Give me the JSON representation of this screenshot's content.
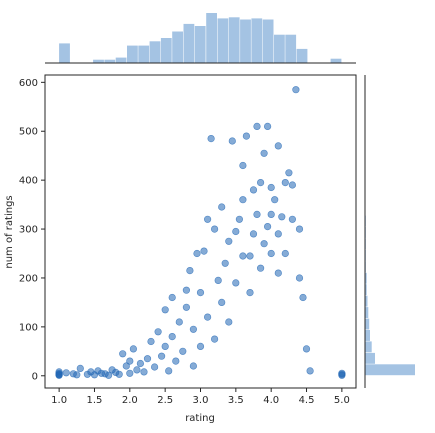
{
  "chart_data": {
    "type": "scatter",
    "title": "",
    "xlabel": "rating",
    "ylabel": "num of ratings",
    "xlim": [
      0.8,
      5.2
    ],
    "ylim": [
      -25,
      615
    ],
    "xticks": [
      1.0,
      1.5,
      2.0,
      2.5,
      3.0,
      3.5,
      4.0,
      4.5,
      5.0
    ],
    "xtick_labels": [
      "1.0",
      "1.5",
      "2.0",
      "2.5",
      "3.0",
      "3.5",
      "4.0",
      "4.5",
      "5.0"
    ],
    "yticks": [
      0,
      100,
      200,
      300,
      400,
      500,
      600
    ],
    "ytick_labels": [
      "0",
      "100",
      "200",
      "300",
      "400",
      "500",
      "600"
    ],
    "grid": false,
    "legend": "none",
    "colors": {
      "points": "#2166b5",
      "hist": "#a4c3e3",
      "axis": "#262626"
    },
    "points": [
      [
        1.0,
        1
      ],
      [
        1.0,
        2
      ],
      [
        1.0,
        3
      ],
      [
        1.0,
        5
      ],
      [
        1.0,
        8
      ],
      [
        1.1,
        6
      ],
      [
        1.2,
        4
      ],
      [
        1.25,
        2
      ],
      [
        1.3,
        15
      ],
      [
        1.4,
        3
      ],
      [
        1.45,
        8
      ],
      [
        1.5,
        2
      ],
      [
        1.55,
        10
      ],
      [
        1.6,
        5
      ],
      [
        1.65,
        4
      ],
      [
        1.7,
        1
      ],
      [
        1.75,
        12
      ],
      [
        1.8,
        7
      ],
      [
        1.85,
        3
      ],
      [
        1.9,
        45
      ],
      [
        1.95,
        20
      ],
      [
        2.0,
        5
      ],
      [
        2.0,
        30
      ],
      [
        2.05,
        55
      ],
      [
        2.1,
        12
      ],
      [
        2.15,
        25
      ],
      [
        2.2,
        8
      ],
      [
        2.25,
        35
      ],
      [
        2.3,
        70
      ],
      [
        2.35,
        18
      ],
      [
        2.4,
        90
      ],
      [
        2.45,
        40
      ],
      [
        2.5,
        135
      ],
      [
        2.5,
        60
      ],
      [
        2.55,
        10
      ],
      [
        2.6,
        160
      ],
      [
        2.6,
        80
      ],
      [
        2.65,
        30
      ],
      [
        2.7,
        110
      ],
      [
        2.75,
        50
      ],
      [
        2.8,
        175
      ],
      [
        2.8,
        140
      ],
      [
        2.85,
        215
      ],
      [
        2.9,
        95
      ],
      [
        2.9,
        20
      ],
      [
        2.95,
        250
      ],
      [
        3.0,
        60
      ],
      [
        3.0,
        170
      ],
      [
        3.05,
        255
      ],
      [
        3.1,
        320
      ],
      [
        3.1,
        120
      ],
      [
        3.15,
        485
      ],
      [
        3.2,
        300
      ],
      [
        3.2,
        75
      ],
      [
        3.25,
        195
      ],
      [
        3.3,
        345
      ],
      [
        3.3,
        150
      ],
      [
        3.35,
        230
      ],
      [
        3.4,
        275
      ],
      [
        3.4,
        110
      ],
      [
        3.45,
        480
      ],
      [
        3.5,
        295
      ],
      [
        3.5,
        190
      ],
      [
        3.55,
        320
      ],
      [
        3.6,
        430
      ],
      [
        3.6,
        360
      ],
      [
        3.6,
        245
      ],
      [
        3.65,
        490
      ],
      [
        3.7,
        245
      ],
      [
        3.7,
        170
      ],
      [
        3.75,
        380
      ],
      [
        3.75,
        290
      ],
      [
        3.8,
        510
      ],
      [
        3.8,
        330
      ],
      [
        3.85,
        395
      ],
      [
        3.85,
        220
      ],
      [
        3.9,
        455
      ],
      [
        3.9,
        270
      ],
      [
        3.95,
        510
      ],
      [
        3.95,
        305
      ],
      [
        4.0,
        385
      ],
      [
        4.0,
        330
      ],
      [
        4.0,
        250
      ],
      [
        4.05,
        360
      ],
      [
        4.1,
        470
      ],
      [
        4.1,
        290
      ],
      [
        4.1,
        210
      ],
      [
        4.15,
        325
      ],
      [
        4.2,
        395
      ],
      [
        4.2,
        250
      ],
      [
        4.25,
        415
      ],
      [
        4.3,
        390
      ],
      [
        4.3,
        320
      ],
      [
        4.35,
        585
      ],
      [
        4.4,
        300
      ],
      [
        4.4,
        200
      ],
      [
        4.45,
        160
      ],
      [
        4.5,
        55
      ],
      [
        4.55,
        10
      ],
      [
        5.0,
        1
      ],
      [
        5.0,
        3
      ],
      [
        5.0,
        5
      ]
    ],
    "x_hist": {
      "edges": [
        1.0,
        1.16,
        1.32,
        1.48,
        1.64,
        1.8,
        1.96,
        2.12,
        2.28,
        2.44,
        2.6,
        2.76,
        2.92,
        3.08,
        3.24,
        3.4,
        3.56,
        3.72,
        3.88,
        4.04,
        4.2,
        4.36,
        4.52,
        4.68,
        4.84,
        5.0
      ],
      "counts": [
        18,
        0,
        0,
        3,
        3,
        5,
        16,
        16,
        20,
        23,
        29,
        36,
        34,
        46,
        41,
        42,
        40,
        41,
        40,
        26,
        26,
        13,
        0,
        0,
        4
      ]
    },
    "y_hist": {
      "edges": [
        0,
        23.4,
        46.8,
        70.2,
        93.6,
        117,
        140.4,
        163.8,
        187.2,
        210.6,
        234,
        257.4,
        280.8,
        304.2,
        327.6,
        351,
        374.4,
        397.8,
        421.2,
        444.6,
        468,
        491.4,
        514.8,
        538.2,
        561.6,
        585
      ],
      "counts": [
        60,
        12,
        8,
        6,
        5,
        4,
        3,
        2,
        2,
        1,
        1,
        1,
        1,
        1,
        0,
        0,
        0,
        0,
        0,
        0,
        0,
        0,
        0,
        0,
        0
      ]
    }
  }
}
